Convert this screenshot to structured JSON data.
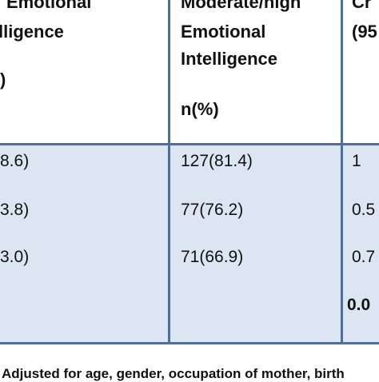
{
  "table": {
    "headers": [
      {
        "lines": [
          "Emotional",
          "lligence",
          ")"
        ]
      },
      {
        "lines": [
          "Moderate/high",
          "Emotional",
          "Intelligence",
          "n(%)"
        ]
      },
      {
        "lines": [
          "Cr",
          "(95"
        ]
      }
    ],
    "rows": [
      {
        "col1": "8.6)",
        "col2": "127(81.4)",
        "col3": "1"
      },
      {
        "col1": "3.8)",
        "col2": "77(76.2)",
        "col3": "0.5"
      },
      {
        "col1": "3.0)",
        "col2": "71(66.9)",
        "col3": "0.7"
      },
      {
        "col1": "",
        "col2": "",
        "col3": "0.0"
      }
    ]
  },
  "footnote": "Adjusted for age, gender, occupation of mother, birth",
  "colors": {
    "grid": "#4f6f9a",
    "body_bg": "#dce6f2"
  }
}
